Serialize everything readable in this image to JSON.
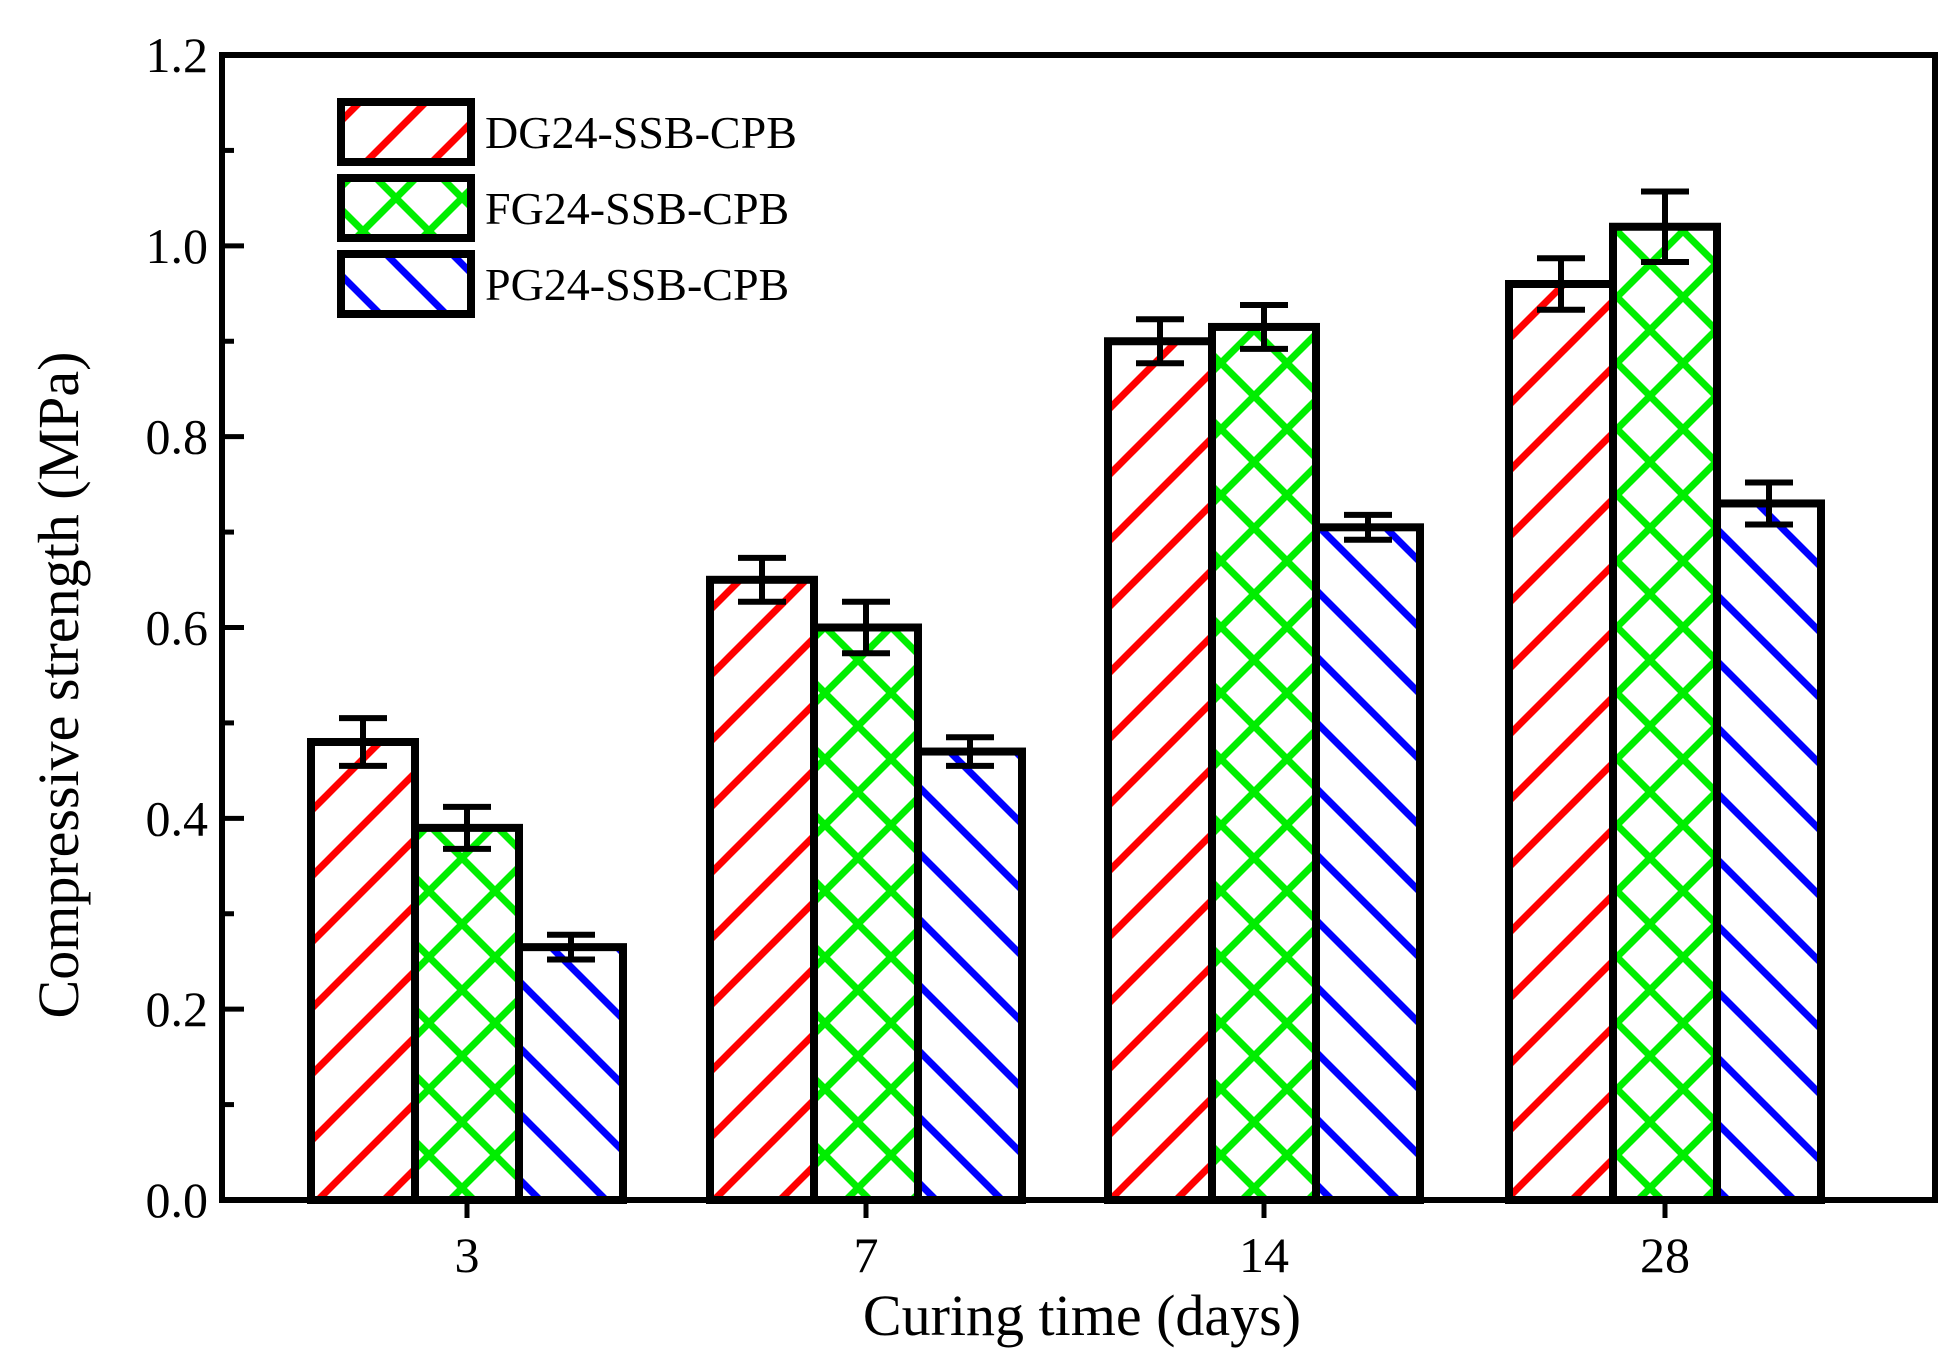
{
  "chart_data": {
    "type": "bar",
    "title": "",
    "xlabel": "Curing time (days)",
    "ylabel": "Compressive strength (MPa)",
    "ylim": [
      0,
      1.2
    ],
    "yticks": [
      "0.0",
      "0.2",
      "0.4",
      "0.6",
      "0.8",
      "1.0",
      "1.2"
    ],
    "categories": [
      "3",
      "7",
      "14",
      "28"
    ],
    "legend_position": "top-left",
    "grid": false,
    "series": [
      {
        "name": "DG24-SSB-CPB",
        "color": "#ff0000",
        "pattern": "forward-hatch",
        "values": [
          0.48,
          0.65,
          0.9,
          0.96
        ],
        "errors": [
          0.025,
          0.023,
          0.023,
          0.027
        ]
      },
      {
        "name": "FG24-SSB-CPB",
        "color": "#00ee00",
        "pattern": "cross-hatch",
        "values": [
          0.39,
          0.6,
          0.915,
          1.02
        ],
        "errors": [
          0.022,
          0.027,
          0.023,
          0.037
        ]
      },
      {
        "name": "PG24-SSB-CPB",
        "color": "#0000ff",
        "pattern": "back-hatch",
        "values": [
          0.265,
          0.47,
          0.705,
          0.73
        ],
        "errors": [
          0.013,
          0.015,
          0.013,
          0.022
        ]
      }
    ]
  }
}
